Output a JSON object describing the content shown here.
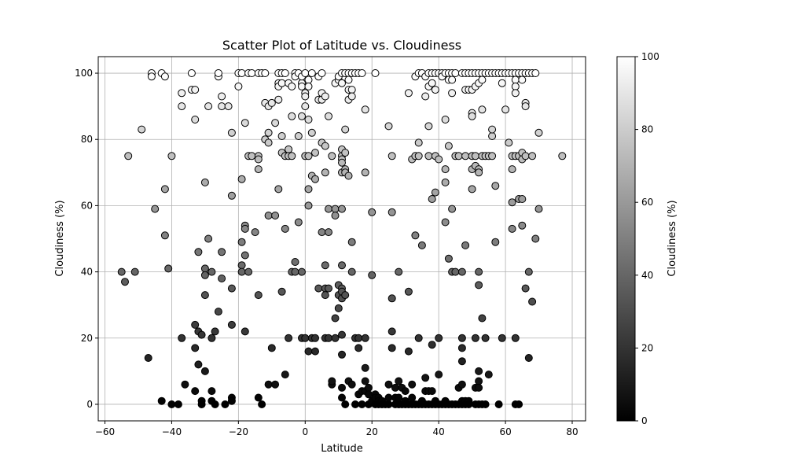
{
  "chart_data": {
    "type": "scatter",
    "title": "Scatter Plot of Latitude vs. Cloudiness",
    "xlabel": "Latitude",
    "ylabel": "Cloudiness (%)",
    "xlim": [
      -62,
      84
    ],
    "ylim": [
      -5,
      105
    ],
    "xticks": [
      -60,
      -40,
      -20,
      0,
      20,
      40,
      60,
      80
    ],
    "yticks": [
      0,
      20,
      40,
      60,
      80,
      100
    ],
    "grid": true,
    "colormap": "gray",
    "marker_edge_color": "#000000",
    "colorbar": {
      "label": "Cloudiness (%)",
      "range": [
        0,
        100
      ],
      "ticks": [
        0,
        20,
        40,
        60,
        80,
        100
      ]
    },
    "points": [
      [
        -55,
        40
      ],
      [
        -54,
        37
      ],
      [
        -53,
        75
      ],
      [
        -51,
        40
      ],
      [
        -49,
        83
      ],
      [
        -47,
        14
      ],
      [
        -46,
        100
      ],
      [
        -46,
        99
      ],
      [
        -45,
        59
      ],
      [
        -43,
        100
      ],
      [
        -42,
        99
      ],
      [
        -42,
        65
      ],
      [
        -42,
        51
      ],
      [
        -41,
        41
      ],
      [
        -40,
        75
      ],
      [
        -40,
        0
      ],
      [
        -43,
        1
      ],
      [
        -38,
        0
      ],
      [
        -37,
        90
      ],
      [
        -37,
        94
      ],
      [
        -37,
        20
      ],
      [
        -36,
        6
      ],
      [
        -34,
        100
      ],
      [
        -34,
        95
      ],
      [
        -33,
        95
      ],
      [
        -33,
        86
      ],
      [
        -33,
        24
      ],
      [
        -33,
        17
      ],
      [
        -33,
        4
      ],
      [
        -32,
        22
      ],
      [
        -32,
        12
      ],
      [
        -32,
        46
      ],
      [
        -31,
        21
      ],
      [
        -31,
        1
      ],
      [
        -31,
        0
      ],
      [
        -30,
        41
      ],
      [
        -30,
        39
      ],
      [
        -30,
        33
      ],
      [
        -30,
        10
      ],
      [
        -30,
        67
      ],
      [
        -29,
        90
      ],
      [
        -29,
        50
      ],
      [
        -28,
        40
      ],
      [
        -28,
        20
      ],
      [
        -28,
        4
      ],
      [
        -28,
        1
      ],
      [
        -27,
        0
      ],
      [
        -27,
        22
      ],
      [
        -26,
        99
      ],
      [
        -26,
        100
      ],
      [
        -26,
        28
      ],
      [
        -25,
        93
      ],
      [
        -25,
        90
      ],
      [
        -25,
        38
      ],
      [
        -25,
        46
      ],
      [
        -24,
        0
      ],
      [
        -23,
        90
      ],
      [
        -22,
        82
      ],
      [
        -22,
        63
      ],
      [
        -22,
        35
      ],
      [
        -22,
        24
      ],
      [
        -22,
        2
      ],
      [
        -22,
        1
      ],
      [
        -20,
        96
      ],
      [
        -20,
        100
      ],
      [
        -19,
        100
      ],
      [
        -19,
        68
      ],
      [
        -19,
        49
      ],
      [
        -19,
        42
      ],
      [
        -19,
        40
      ],
      [
        -18,
        54
      ],
      [
        -18,
        53
      ],
      [
        -18,
        85
      ],
      [
        -18,
        45
      ],
      [
        -18,
        22
      ],
      [
        -17,
        100
      ],
      [
        -17,
        75
      ],
      [
        -17,
        40
      ],
      [
        -16,
        75
      ],
      [
        -16,
        100
      ],
      [
        -15,
        52
      ],
      [
        -14,
        100
      ],
      [
        -14,
        75
      ],
      [
        -14,
        74
      ],
      [
        -14,
        71
      ],
      [
        -14,
        33
      ],
      [
        -14,
        2
      ],
      [
        -13,
        0
      ],
      [
        -13,
        100
      ],
      [
        -12,
        100
      ],
      [
        -12,
        91
      ],
      [
        -12,
        80
      ],
      [
        -11,
        79
      ],
      [
        -11,
        82
      ],
      [
        -11,
        90
      ],
      [
        -11,
        57
      ],
      [
        -11,
        6
      ],
      [
        -10,
        91
      ],
      [
        -10,
        17
      ],
      [
        -9,
        85
      ],
      [
        -9,
        57
      ],
      [
        -9,
        6
      ],
      [
        -8,
        100
      ],
      [
        -8,
        97
      ],
      [
        -8,
        65
      ],
      [
        -8,
        96
      ],
      [
        -8,
        92
      ],
      [
        -7,
        100
      ],
      [
        -7,
        81
      ],
      [
        -7,
        76
      ],
      [
        -7,
        34
      ],
      [
        -7,
        97
      ],
      [
        -6,
        100
      ],
      [
        -6,
        75
      ],
      [
        -6,
        53
      ],
      [
        -6,
        9
      ],
      [
        -5,
        97
      ],
      [
        -5,
        77
      ],
      [
        -5,
        75
      ],
      [
        -5,
        20
      ],
      [
        -4,
        96
      ],
      [
        -4,
        87
      ],
      [
        -4,
        75
      ],
      [
        -4,
        40
      ],
      [
        -3,
        100
      ],
      [
        -3,
        99
      ],
      [
        -3,
        43
      ],
      [
        -3,
        40
      ],
      [
        -2,
        100
      ],
      [
        -2,
        81
      ],
      [
        -2,
        55
      ],
      [
        -1,
        97
      ],
      [
        -1,
        96
      ],
      [
        -1,
        99
      ],
      [
        -1,
        87
      ],
      [
        -1,
        40
      ],
      [
        -1,
        20
      ],
      [
        0,
        100
      ],
      [
        0,
        94
      ],
      [
        0,
        93
      ],
      [
        0,
        90
      ],
      [
        0,
        75
      ],
      [
        0,
        20
      ],
      [
        1,
        98
      ],
      [
        1,
        96
      ],
      [
        1,
        86
      ],
      [
        1,
        75
      ],
      [
        1,
        65
      ],
      [
        1,
        60
      ],
      [
        1,
        16
      ],
      [
        2,
        100
      ],
      [
        2,
        82
      ],
      [
        2,
        69
      ],
      [
        2,
        20
      ],
      [
        3,
        76
      ],
      [
        3,
        68
      ],
      [
        3,
        20
      ],
      [
        3,
        16
      ],
      [
        4,
        99
      ],
      [
        4,
        92
      ],
      [
        4,
        35
      ],
      [
        5,
        100
      ],
      [
        5,
        94
      ],
      [
        5,
        92
      ],
      [
        5,
        79
      ],
      [
        5,
        52
      ],
      [
        6,
        93
      ],
      [
        6,
        78
      ],
      [
        6,
        70
      ],
      [
        6,
        42
      ],
      [
        6,
        35
      ],
      [
        6,
        33
      ],
      [
        6,
        20
      ],
      [
        7,
        87
      ],
      [
        7,
        59
      ],
      [
        7,
        52
      ],
      [
        7,
        35
      ],
      [
        7,
        20
      ],
      [
        8,
        75
      ],
      [
        8,
        6
      ],
      [
        8,
        7
      ],
      [
        9,
        97
      ],
      [
        9,
        59
      ],
      [
        9,
        26
      ],
      [
        9,
        20
      ],
      [
        9,
        57
      ],
      [
        10,
        98
      ],
      [
        10,
        99
      ],
      [
        10,
        36
      ],
      [
        10,
        29
      ],
      [
        10,
        33
      ],
      [
        11,
        100
      ],
      [
        11,
        97
      ],
      [
        11,
        77
      ],
      [
        11,
        75
      ],
      [
        11,
        74
      ],
      [
        11,
        73
      ],
      [
        11,
        70
      ],
      [
        11,
        59
      ],
      [
        11,
        42
      ],
      [
        11,
        35
      ],
      [
        11,
        34
      ],
      [
        11,
        32
      ],
      [
        11,
        21
      ],
      [
        11,
        15
      ],
      [
        11,
        5
      ],
      [
        11,
        2
      ],
      [
        12,
        100
      ],
      [
        12,
        83
      ],
      [
        12,
        76
      ],
      [
        12,
        71
      ],
      [
        12,
        70
      ],
      [
        12,
        33
      ],
      [
        12,
        0
      ],
      [
        13,
        100
      ],
      [
        13,
        98
      ],
      [
        13,
        95
      ],
      [
        13,
        92
      ],
      [
        13,
        69
      ],
      [
        13,
        7
      ],
      [
        14,
        100
      ],
      [
        14,
        95
      ],
      [
        14,
        93
      ],
      [
        14,
        49
      ],
      [
        14,
        40
      ],
      [
        14,
        6
      ],
      [
        15,
        100
      ],
      [
        15,
        20
      ],
      [
        15,
        0
      ],
      [
        16,
        100
      ],
      [
        16,
        20
      ],
      [
        16,
        17
      ],
      [
        16,
        3
      ],
      [
        17,
        100
      ],
      [
        17,
        4
      ],
      [
        17,
        0
      ],
      [
        18,
        89
      ],
      [
        18,
        70
      ],
      [
        18,
        20
      ],
      [
        18,
        11
      ],
      [
        18,
        7
      ],
      [
        18,
        4
      ],
      [
        19,
        5
      ],
      [
        19,
        3
      ],
      [
        19,
        0
      ],
      [
        20,
        58
      ],
      [
        20,
        39
      ],
      [
        20,
        1
      ],
      [
        21,
        100
      ],
      [
        21,
        3
      ],
      [
        21,
        2
      ],
      [
        21,
        0
      ],
      [
        22,
        2
      ],
      [
        22,
        1
      ],
      [
        22,
        0
      ],
      [
        23,
        1
      ],
      [
        23,
        0
      ],
      [
        24,
        0
      ],
      [
        25,
        84
      ],
      [
        25,
        6
      ],
      [
        25,
        2
      ],
      [
        25,
        0
      ],
      [
        26,
        75
      ],
      [
        26,
        58
      ],
      [
        26,
        32
      ],
      [
        26,
        22
      ],
      [
        26,
        17
      ],
      [
        27,
        5
      ],
      [
        27,
        2
      ],
      [
        27,
        0
      ],
      [
        28,
        40
      ],
      [
        28,
        7
      ],
      [
        28,
        2
      ],
      [
        28,
        0
      ],
      [
        29,
        5
      ],
      [
        29,
        0
      ],
      [
        30,
        4
      ],
      [
        30,
        1
      ],
      [
        30,
        0
      ],
      [
        31,
        94
      ],
      [
        31,
        34
      ],
      [
        31,
        16
      ],
      [
        31,
        0
      ],
      [
        32,
        74
      ],
      [
        32,
        6
      ],
      [
        32,
        2
      ],
      [
        32,
        0
      ],
      [
        33,
        75
      ],
      [
        33,
        51
      ],
      [
        33,
        99
      ],
      [
        33,
        0
      ],
      [
        34,
        100
      ],
      [
        34,
        79
      ],
      [
        34,
        75
      ],
      [
        34,
        20
      ],
      [
        34,
        0
      ],
      [
        35,
        100
      ],
      [
        35,
        48
      ],
      [
        35,
        1
      ],
      [
        35,
        0
      ],
      [
        36,
        93
      ],
      [
        36,
        99
      ],
      [
        36,
        8
      ],
      [
        36,
        4
      ],
      [
        36,
        0
      ],
      [
        37,
        100
      ],
      [
        37,
        96
      ],
      [
        37,
        84
      ],
      [
        37,
        75
      ],
      [
        37,
        4
      ],
      [
        37,
        0
      ],
      [
        38,
        100
      ],
      [
        38,
        97
      ],
      [
        38,
        62
      ],
      [
        38,
        18
      ],
      [
        38,
        4
      ],
      [
        38,
        0
      ],
      [
        39,
        100
      ],
      [
        39,
        95
      ],
      [
        39,
        75
      ],
      [
        39,
        64
      ],
      [
        39,
        1
      ],
      [
        39,
        0
      ],
      [
        40,
        100
      ],
      [
        40,
        74
      ],
      [
        40,
        20
      ],
      [
        40,
        9
      ],
      [
        40,
        0
      ],
      [
        41,
        100
      ],
      [
        41,
        99
      ],
      [
        41,
        0
      ],
      [
        42,
        100
      ],
      [
        42,
        86
      ],
      [
        42,
        71
      ],
      [
        42,
        67
      ],
      [
        42,
        55
      ],
      [
        42,
        1
      ],
      [
        42,
        0
      ],
      [
        43,
        100
      ],
      [
        43,
        98
      ],
      [
        43,
        78
      ],
      [
        43,
        44
      ],
      [
        43,
        0
      ],
      [
        44,
        100
      ],
      [
        44,
        98
      ],
      [
        44,
        94
      ],
      [
        44,
        59
      ],
      [
        44,
        40
      ],
      [
        44,
        0
      ],
      [
        45,
        100
      ],
      [
        45,
        75
      ],
      [
        45,
        40
      ],
      [
        45,
        0
      ],
      [
        46,
        75
      ],
      [
        46,
        5
      ],
      [
        46,
        0
      ],
      [
        47,
        100
      ],
      [
        47,
        40
      ],
      [
        47,
        20
      ],
      [
        47,
        17
      ],
      [
        47,
        13
      ],
      [
        47,
        6
      ],
      [
        47,
        1
      ],
      [
        47,
        0
      ],
      [
        48,
        100
      ],
      [
        48,
        95
      ],
      [
        48,
        75
      ],
      [
        48,
        48
      ],
      [
        48,
        1
      ],
      [
        48,
        0
      ],
      [
        49,
        100
      ],
      [
        49,
        95
      ],
      [
        49,
        1
      ],
      [
        49,
        0
      ],
      [
        50,
        100
      ],
      [
        50,
        95
      ],
      [
        50,
        88
      ],
      [
        50,
        87
      ],
      [
        50,
        75
      ],
      [
        50,
        71
      ],
      [
        50,
        65
      ],
      [
        51,
        100
      ],
      [
        51,
        96
      ],
      [
        51,
        75
      ],
      [
        51,
        72
      ],
      [
        51,
        20
      ],
      [
        51,
        5
      ],
      [
        51,
        0
      ],
      [
        52,
        100
      ],
      [
        52,
        97
      ],
      [
        52,
        71
      ],
      [
        52,
        70
      ],
      [
        52,
        40
      ],
      [
        52,
        36
      ],
      [
        52,
        10
      ],
      [
        52,
        7
      ],
      [
        52,
        5
      ],
      [
        52,
        0
      ],
      [
        53,
        100
      ],
      [
        53,
        98
      ],
      [
        53,
        89
      ],
      [
        53,
        75
      ],
      [
        53,
        26
      ],
      [
        53,
        0
      ],
      [
        54,
        100
      ],
      [
        54,
        75
      ],
      [
        54,
        20
      ],
      [
        54,
        0
      ],
      [
        55,
        100
      ],
      [
        55,
        75
      ],
      [
        55,
        9
      ],
      [
        56,
        100
      ],
      [
        56,
        81
      ],
      [
        56,
        83
      ],
      [
        56,
        75
      ],
      [
        57,
        100
      ],
      [
        57,
        66
      ],
      [
        57,
        49
      ],
      [
        58,
        100
      ],
      [
        58,
        0
      ],
      [
        59,
        100
      ],
      [
        59,
        97
      ],
      [
        59,
        20
      ],
      [
        60,
        100
      ],
      [
        60,
        89
      ],
      [
        61,
        100
      ],
      [
        61,
        79
      ],
      [
        62,
        100
      ],
      [
        62,
        75
      ],
      [
        62,
        71
      ],
      [
        62,
        61
      ],
      [
        62,
        53
      ],
      [
        63,
        100
      ],
      [
        63,
        98
      ],
      [
        63,
        96
      ],
      [
        63,
        94
      ],
      [
        63,
        75
      ],
      [
        63,
        20
      ],
      [
        63,
        0
      ],
      [
        64,
        100
      ],
      [
        64,
        75
      ],
      [
        64,
        62
      ],
      [
        64,
        0
      ],
      [
        65,
        100
      ],
      [
        65,
        98
      ],
      [
        65,
        76
      ],
      [
        65,
        74
      ],
      [
        65,
        62
      ],
      [
        65,
        54
      ],
      [
        66,
        100
      ],
      [
        66,
        91
      ],
      [
        66,
        75
      ],
      [
        66,
        90
      ],
      [
        66,
        35
      ],
      [
        67,
        100
      ],
      [
        67,
        40
      ],
      [
        67,
        14
      ],
      [
        68,
        100
      ],
      [
        68,
        31
      ],
      [
        68,
        75
      ],
      [
        69,
        100
      ],
      [
        69,
        50
      ],
      [
        70,
        82
      ],
      [
        70,
        59
      ],
      [
        77,
        75
      ]
    ]
  }
}
